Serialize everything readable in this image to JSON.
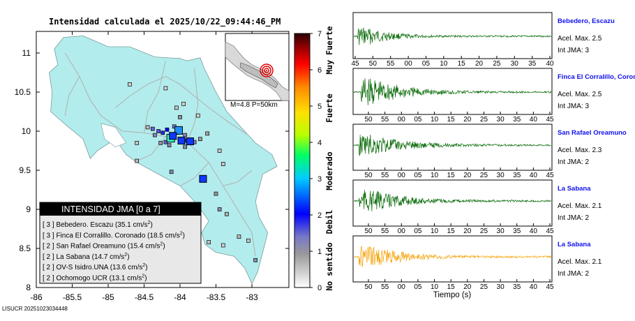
{
  "map": {
    "title": "Intensidad calculada el 2025/10/22_09:44:46_PM",
    "x_ticks": [
      "-86",
      "-85.5",
      "-85",
      "-84.5",
      "-84",
      "-83.5",
      "-83"
    ],
    "y_ticks": [
      "11",
      "10.5",
      "10",
      "9.5",
      "9",
      "8.5",
      "8"
    ],
    "footer_id": "LISUCR 20251023034448",
    "inset_label": "M=4.8 P=50km",
    "legend": {
      "title": "INTENSIDAD JMA [0 a 7]",
      "items": [
        {
          "level": "[ 3 ]",
          "text": "Bebedero. Escazu (35.1 cm/s",
          "sup": "2",
          "close": ")"
        },
        {
          "level": "[ 3 ]",
          "text": "Finca El Corralillo. Coronado (18.5 cm/s",
          "sup": "2",
          "close": ")"
        },
        {
          "level": "[ 2 ]",
          "text": "San Rafael Oreamuno (15.4 cm/s",
          "sup": "2",
          "close": ")"
        },
        {
          "level": "[ 2 ]",
          "text": "La Sabana (14.7 cm/s",
          "sup": "2",
          "close": ")"
        },
        {
          "level": "[ 2 ]",
          "text": "OV-S Isidro.UNA (13.6 cm/s",
          "sup": "2",
          "close": ")"
        },
        {
          "level": "[ 2 ]",
          "text": "Ochomogo UCR (13.1 cm/s",
          "sup": "2",
          "close": ")"
        }
      ]
    }
  },
  "colorbar": {
    "ticks": [
      "7",
      "6",
      "5",
      "4",
      "3",
      "2",
      "1",
      "0"
    ],
    "labels": [
      "Muy Fuerte",
      "Fuerte",
      "Moderado",
      "Debil",
      "No sentido"
    ]
  },
  "waveforms": {
    "xlabel": "Tiempo (s)",
    "panels": [
      {
        "station": "Bebedero, Escazu",
        "acel": "Acel. Max. 2.5",
        "int": "Int JMA: 3",
        "color": "#006600",
        "ticks": [
          "45",
          "50",
          "55",
          "00",
          "05",
          "10",
          "15",
          "20",
          "25",
          "30",
          "35",
          "40"
        ]
      },
      {
        "station": "Finca El Corralillo, Coronado",
        "acel": "Acel. Max. 2.5",
        "int": "Int JMA: 3",
        "color": "#006600",
        "ticks": [
          "50",
          "55",
          "00",
          "05",
          "10",
          "15",
          "20",
          "25",
          "30",
          "35",
          "40",
          "45"
        ]
      },
      {
        "station": "San Rafael Oreamuno",
        "acel": "Acel. Max. 2.3",
        "int": "Int JMA: 2",
        "color": "#006600",
        "ticks": [
          "50",
          "55",
          "00",
          "05",
          "10",
          "15",
          "20",
          "25",
          "30",
          "35",
          "40",
          "45"
        ]
      },
      {
        "station": "La Sabana",
        "acel": "Acel. Max. 2.1",
        "int": "Int JMA: 2",
        "color": "#006600",
        "ticks": [
          "50",
          "55",
          "00",
          "05",
          "10",
          "15",
          "20",
          "25",
          "30",
          "35",
          "40",
          "45"
        ]
      },
      {
        "station": "La Sabana",
        "acel": "Acel. Max. 2.1",
        "int": "Int JMA: 2",
        "color": "#f5a000",
        "ticks": [
          "50",
          "55",
          "00",
          "05",
          "10",
          "15",
          "20",
          "25",
          "30",
          "35",
          "40",
          "45"
        ]
      }
    ]
  },
  "chart_data": [
    {
      "type": "scatter",
      "title": "Intensidad calculada el 2025/10/22_09:44:46_PM",
      "xlim": [
        -86,
        -82.5
      ],
      "ylim": [
        8,
        11.3
      ],
      "colorbar": {
        "min": 0,
        "max": 7
      },
      "epicenter": {
        "x": -82.75,
        "y": 10.85
      },
      "highlighted_stations": [
        {
          "name": "Bebedero. Escazu",
          "x": -84.13,
          "y": 9.91,
          "intensity": 3
        },
        {
          "name": "Finca El Corralillo. Coronado",
          "x": -84.02,
          "y": 10.01,
          "intensity": 3
        },
        {
          "name": "San Rafael Oreamuno",
          "x": -83.86,
          "y": 9.87,
          "intensity": 2
        },
        {
          "name": "La Sabana",
          "x": -84.1,
          "y": 9.94,
          "intensity": 2
        },
        {
          "name": "Ochomogo UCR",
          "x": -83.98,
          "y": 9.88,
          "intensity": 2
        },
        {
          "name": "OV-S Isidro.UNA",
          "x": -83.68,
          "y": 9.39,
          "intensity": 2
        }
      ],
      "stations": [
        {
          "x": -84.7,
          "y": 10.6,
          "i": 0.4
        },
        {
          "x": -84.2,
          "y": 10.55,
          "i": 0.4
        },
        {
          "x": -84.05,
          "y": 10.3,
          "i": 0.5
        },
        {
          "x": -83.95,
          "y": 10.35,
          "i": 0.4
        },
        {
          "x": -84.45,
          "y": 10.05,
          "i": 0.6
        },
        {
          "x": -84.38,
          "y": 10.03,
          "i": 1.5
        },
        {
          "x": -84.3,
          "y": 10.0,
          "i": 1.6
        },
        {
          "x": -84.24,
          "y": 9.98,
          "i": 1.8
        },
        {
          "x": -84.18,
          "y": 10.02,
          "i": 2.0
        },
        {
          "x": -84.08,
          "y": 10.06,
          "i": 1.4
        },
        {
          "x": -84.05,
          "y": 9.98,
          "i": 1.7
        },
        {
          "x": -83.93,
          "y": 9.95,
          "i": 1.2
        },
        {
          "x": -83.9,
          "y": 9.88,
          "i": 1.5
        },
        {
          "x": -83.8,
          "y": 9.86,
          "i": 1.3
        },
        {
          "x": -83.72,
          "y": 9.9,
          "i": 0.9
        },
        {
          "x": -84.2,
          "y": 9.86,
          "i": 1.5
        },
        {
          "x": -84.27,
          "y": 9.85,
          "i": 1.0
        },
        {
          "x": -84.15,
          "y": 9.82,
          "i": 1.2
        },
        {
          "x": -84.6,
          "y": 9.62,
          "i": 0.6
        },
        {
          "x": -84.12,
          "y": 9.48,
          "i": 1.2
        },
        {
          "x": -83.62,
          "y": 9.97,
          "i": 0.8
        },
        {
          "x": -83.45,
          "y": 9.75,
          "i": 0.5
        },
        {
          "x": -83.4,
          "y": 9.58,
          "i": 0.5
        },
        {
          "x": -83.5,
          "y": 9.2,
          "i": 0.9
        },
        {
          "x": -83.45,
          "y": 9.0,
          "i": 1.1
        },
        {
          "x": -83.35,
          "y": 8.94,
          "i": 0.7
        },
        {
          "x": -83.18,
          "y": 8.65,
          "i": 0.6
        },
        {
          "x": -83.05,
          "y": 8.6,
          "i": 0.5
        },
        {
          "x": -82.95,
          "y": 8.35,
          "i": 1.1
        },
        {
          "x": -83.4,
          "y": 8.54,
          "i": 0.4
        },
        {
          "x": -83.6,
          "y": 8.58,
          "i": 0.5
        },
        {
          "x": -84.6,
          "y": 9.85,
          "i": 0.5
        },
        {
          "x": -84.35,
          "y": 9.95,
          "i": 1.2
        },
        {
          "x": -83.93,
          "y": 9.8,
          "i": 1.1
        },
        {
          "x": -83.75,
          "y": 10.2,
          "i": 0.4
        },
        {
          "x": -84.0,
          "y": 10.18,
          "i": 1.0
        }
      ]
    },
    {
      "type": "line",
      "xlabel": "Tiempo (s)",
      "series": [
        {
          "name": "Bebedero, Escazu",
          "peak": 2.5
        },
        {
          "name": "Finca El Corralillo, Coronado",
          "peak": 2.5
        },
        {
          "name": "San Rafael Oreamuno",
          "peak": 2.3
        },
        {
          "name": "La Sabana",
          "peak": 2.1
        },
        {
          "name": "La Sabana",
          "peak": 2.1
        }
      ]
    }
  ]
}
